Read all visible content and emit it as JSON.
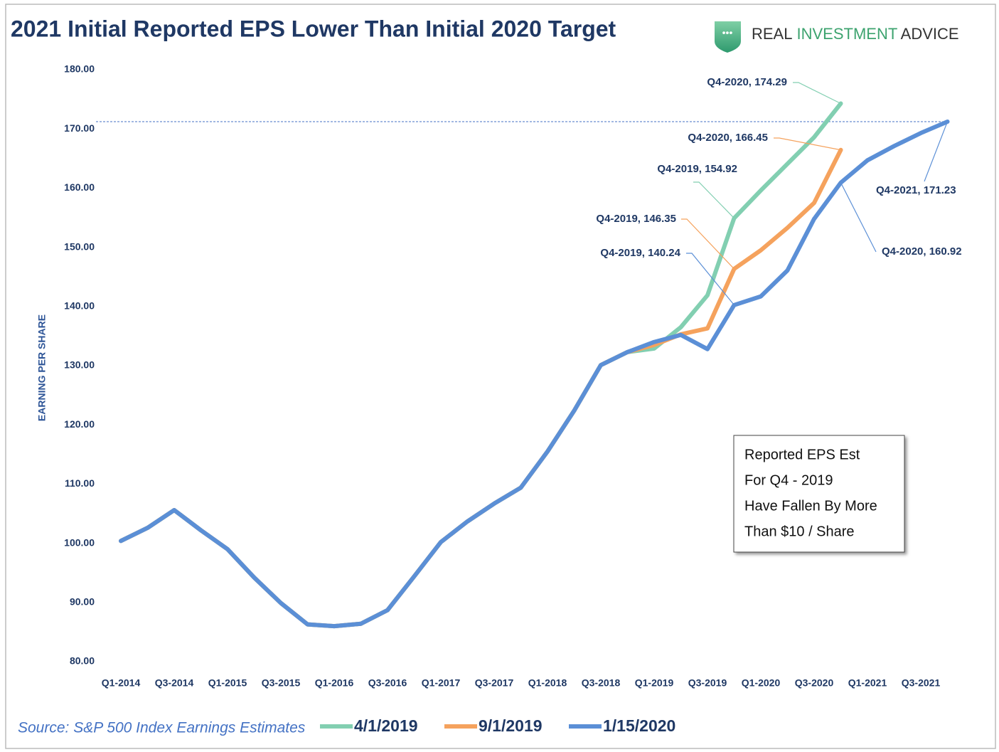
{
  "chart_data": {
    "type": "line",
    "title": "2021 Initial Reported EPS Lower Than Initial 2020 Target",
    "logo": [
      "REAL",
      "INVESTMENT",
      "ADVICE"
    ],
    "y_label": "EARNING PER SHARE",
    "source": "Source: S&P 500 Index Earnings Estimates",
    "categories": [
      "Q1-2014",
      null,
      "Q3-2014",
      null,
      "Q1-2015",
      null,
      "Q3-2015",
      null,
      "Q1-2016",
      null,
      "Q3-2016",
      null,
      "Q1-2017",
      null,
      "Q3-2017",
      null,
      "Q1-2018",
      null,
      "Q3-2018",
      null,
      "Q1-2019",
      null,
      "Q3-2019",
      null,
      "Q1-2020",
      null,
      "Q3-2020",
      null,
      "Q1-2021",
      null,
      "Q3-2021",
      null
    ],
    "series": [
      {
        "name": "4/1/2019",
        "color": "#82cfb1",
        "values": [
          100.4,
          102.6,
          105.6,
          102.2,
          99.0,
          94.2,
          89.9,
          86.3,
          86.0,
          86.4,
          88.7,
          94.4,
          100.2,
          103.7,
          106.7,
          109.4,
          115.5,
          122.4,
          130.1,
          132.3,
          132.9,
          136.5,
          141.9,
          154.92,
          159.6,
          164.1,
          168.6,
          174.29,
          null,
          null,
          null,
          null
        ]
      },
      {
        "name": "9/1/2019",
        "color": "#f5a25d",
        "values": [
          100.4,
          102.6,
          105.6,
          102.2,
          99.0,
          94.2,
          89.9,
          86.3,
          86.0,
          86.4,
          88.7,
          94.4,
          100.2,
          103.7,
          106.7,
          109.4,
          115.5,
          122.4,
          130.1,
          132.3,
          133.5,
          135.3,
          136.3,
          146.35,
          149.5,
          153.3,
          157.5,
          166.45,
          null,
          null,
          null,
          null
        ]
      },
      {
        "name": "1/15/2020",
        "color": "#5b8fd6",
        "values": [
          100.4,
          102.6,
          105.6,
          102.2,
          99.0,
          94.2,
          89.9,
          86.3,
          86.0,
          86.4,
          88.7,
          94.4,
          100.2,
          103.7,
          106.7,
          109.4,
          115.5,
          122.4,
          130.1,
          132.3,
          134.0,
          135.2,
          132.8,
          140.24,
          141.7,
          146.1,
          154.8,
          160.92,
          164.7,
          167.1,
          169.3,
          171.23
        ]
      }
    ],
    "ylim": [
      80,
      180
    ],
    "yticks": [
      {
        "value": 80,
        "label": "80.00"
      },
      {
        "value": 90,
        "label": "90.00"
      },
      {
        "value": 100,
        "label": "100.00"
      },
      {
        "value": 110,
        "label": "110.00"
      },
      {
        "value": 120,
        "label": "120.00"
      },
      {
        "value": 130,
        "label": "130.00"
      },
      {
        "value": 140,
        "label": "140.00"
      },
      {
        "value": 150,
        "label": "150.00"
      },
      {
        "value": 160,
        "label": "160.00"
      },
      {
        "value": 170,
        "label": "170.00"
      },
      {
        "value": 180,
        "label": "180.00"
      }
    ],
    "grid": false,
    "annotations": [
      "Q4-2020, 174.29",
      "Q4-2020, 166.45",
      "Q4-2019, 154.92",
      "Q4-2019, 146.35",
      "Q4-2019, 140.24",
      "Q4-2021, 171.23",
      "Q4-2020, 160.92"
    ],
    "note": [
      "Reported EPS Est",
      "For Q4 - 2019",
      "Have Fallen By More",
      "Than $10 / Share"
    ]
  }
}
